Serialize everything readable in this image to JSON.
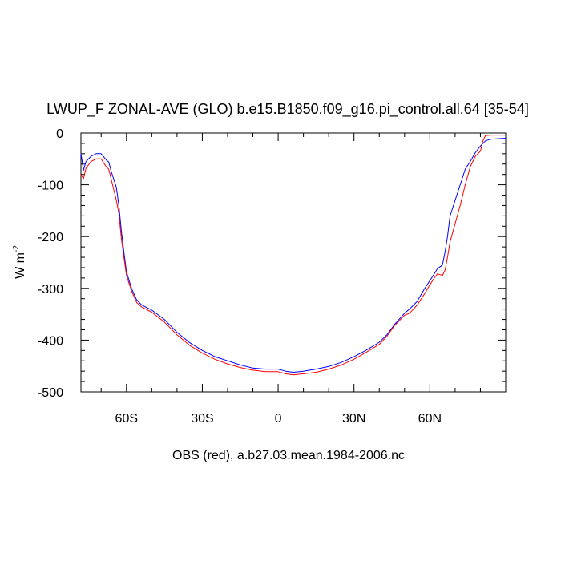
{
  "chart_data": {
    "type": "line",
    "title": "LWUP_F ZONAL-AVE (GLO) b.e15.B1850.f09_g16.pi_control.all.64 [35-54]",
    "xlabel": "OBS (red), a.b27.03.mean.1984-2006.nc",
    "ylabel": "W m",
    "ylabel_sup": "-2",
    "xlim": [
      -78,
      90
    ],
    "ylim": [
      -500,
      0
    ],
    "x_ticks": [
      {
        "value": -60,
        "label": "60S"
      },
      {
        "value": -30,
        "label": "30S"
      },
      {
        "value": 0,
        "label": "0"
      },
      {
        "value": 30,
        "label": "30N"
      },
      {
        "value": 60,
        "label": "60N"
      }
    ],
    "y_ticks": [
      {
        "value": 0,
        "label": "0"
      },
      {
        "value": -100,
        "label": "-100"
      },
      {
        "value": -200,
        "label": "-200"
      },
      {
        "value": -300,
        "label": "-300"
      },
      {
        "value": -400,
        "label": "-400"
      },
      {
        "value": -500,
        "label": "-500"
      }
    ],
    "series": [
      {
        "color": "#0000ff",
        "points": [
          [
            -78,
            -40
          ],
          [
            -77,
            -72
          ],
          [
            -76,
            -55
          ],
          [
            -74,
            -45
          ],
          [
            -72,
            -40
          ],
          [
            -70,
            -40
          ],
          [
            -68,
            -52
          ],
          [
            -67,
            -56
          ],
          [
            -66,
            -75
          ],
          [
            -64,
            -105
          ],
          [
            -63,
            -140
          ],
          [
            -62,
            -190
          ],
          [
            -61,
            -230
          ],
          [
            -60,
            -268
          ],
          [
            -58,
            -300
          ],
          [
            -56,
            -322
          ],
          [
            -54,
            -332
          ],
          [
            -50,
            -342
          ],
          [
            -45,
            -360
          ],
          [
            -40,
            -385
          ],
          [
            -35,
            -405
          ],
          [
            -30,
            -420
          ],
          [
            -25,
            -432
          ],
          [
            -20,
            -440
          ],
          [
            -15,
            -448
          ],
          [
            -10,
            -454
          ],
          [
            -5,
            -456
          ],
          [
            0,
            -456
          ],
          [
            3,
            -460
          ],
          [
            6,
            -462
          ],
          [
            10,
            -460
          ],
          [
            15,
            -456
          ],
          [
            20,
            -451
          ],
          [
            25,
            -443
          ],
          [
            30,
            -432
          ],
          [
            35,
            -419
          ],
          [
            40,
            -404
          ],
          [
            43,
            -390
          ],
          [
            46,
            -370
          ],
          [
            50,
            -348
          ],
          [
            52,
            -340
          ],
          [
            55,
            -325
          ],
          [
            58,
            -300
          ],
          [
            60,
            -285
          ],
          [
            62,
            -270
          ],
          [
            63,
            -262
          ],
          [
            65,
            -255
          ],
          [
            66,
            -230
          ],
          [
            67,
            -200
          ],
          [
            68,
            -160
          ],
          [
            70,
            -130
          ],
          [
            72,
            -100
          ],
          [
            74,
            -70
          ],
          [
            76,
            -55
          ],
          [
            78,
            -38
          ],
          [
            80,
            -25
          ],
          [
            82,
            -15
          ],
          [
            84,
            -12
          ],
          [
            87,
            -11
          ],
          [
            90,
            -10
          ]
        ]
      },
      {
        "color": "#ff0000",
        "points": [
          [
            -78,
            -80
          ],
          [
            -77,
            -88
          ],
          [
            -76,
            -68
          ],
          [
            -74,
            -55
          ],
          [
            -72,
            -50
          ],
          [
            -70,
            -50
          ],
          [
            -68,
            -65
          ],
          [
            -67,
            -70
          ],
          [
            -66,
            -90
          ],
          [
            -64,
            -130
          ],
          [
            -63,
            -155
          ],
          [
            -62,
            -205
          ],
          [
            -61,
            -240
          ],
          [
            -60,
            -275
          ],
          [
            -58,
            -305
          ],
          [
            -56,
            -327
          ],
          [
            -54,
            -336
          ],
          [
            -50,
            -346
          ],
          [
            -45,
            -365
          ],
          [
            -40,
            -390
          ],
          [
            -35,
            -410
          ],
          [
            -30,
            -425
          ],
          [
            -25,
            -437
          ],
          [
            -20,
            -446
          ],
          [
            -15,
            -453
          ],
          [
            -10,
            -458
          ],
          [
            -5,
            -461
          ],
          [
            0,
            -461
          ],
          [
            3,
            -465
          ],
          [
            6,
            -467
          ],
          [
            10,
            -465
          ],
          [
            15,
            -462
          ],
          [
            20,
            -456
          ],
          [
            25,
            -448
          ],
          [
            30,
            -437
          ],
          [
            35,
            -423
          ],
          [
            40,
            -408
          ],
          [
            43,
            -393
          ],
          [
            46,
            -372
          ],
          [
            50,
            -352
          ],
          [
            52,
            -348
          ],
          [
            55,
            -332
          ],
          [
            58,
            -310
          ],
          [
            60,
            -293
          ],
          [
            62,
            -278
          ],
          [
            63,
            -272
          ],
          [
            65,
            -275
          ],
          [
            66,
            -265
          ],
          [
            67,
            -240
          ],
          [
            68,
            -210
          ],
          [
            70,
            -175
          ],
          [
            72,
            -140
          ],
          [
            74,
            -100
          ],
          [
            76,
            -65
          ],
          [
            78,
            -45
          ],
          [
            80,
            -35
          ],
          [
            81,
            -15
          ],
          [
            82,
            -5
          ],
          [
            84,
            -4
          ],
          [
            87,
            -4
          ],
          [
            90,
            -4
          ]
        ]
      }
    ]
  }
}
